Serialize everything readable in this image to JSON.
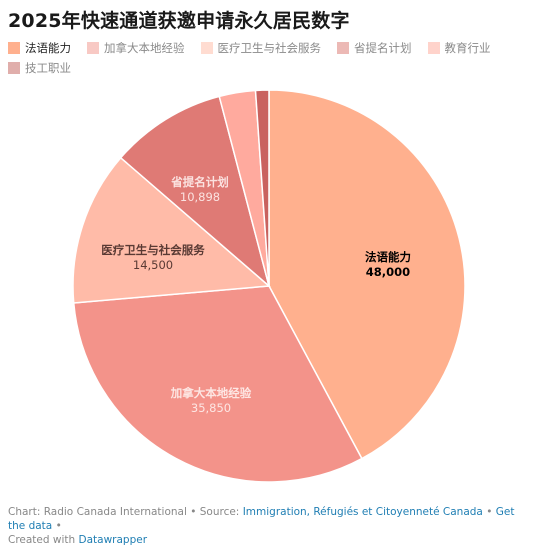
{
  "title": "2025年快速通道获邀申请永久居民数字",
  "chart_data": {
    "type": "pie",
    "title": "2025年快速通道获邀申请永久居民数字",
    "legend_placement": "top",
    "slices": [
      {
        "label": "法语能力",
        "value": 48000,
        "value_label": "48,000",
        "color": "#ffb08e",
        "label_color": "#000000",
        "show_label": true
      },
      {
        "label": "加拿大本地经验",
        "value": 35850,
        "value_label": "35,850",
        "color": "#f3938a",
        "label_color": "#fde6e3",
        "show_label": true
      },
      {
        "label": "医疗卫生与社会服务",
        "value": 14500,
        "value_label": "14,500",
        "color": "#ffbba8",
        "label_color": "#5a3a34",
        "show_label": true
      },
      {
        "label": "省提名计划",
        "value": 10898,
        "value_label": "10,898",
        "color": "#df7a75",
        "label_color": "#fbe2e0",
        "show_label": true
      },
      {
        "label": "教育行业",
        "value": 3400,
        "value_label": "",
        "color": "#ffaa9e",
        "label_color": "#000000",
        "show_label": false
      },
      {
        "label": "技工职业",
        "value": 1250,
        "value_label": "",
        "color": "#c9625f",
        "label_color": "#000000",
        "show_label": false
      }
    ]
  },
  "legend": [
    {
      "label": "法语能力",
      "color": "#ffb08e",
      "active": true
    },
    {
      "label": "加拿大本地经验",
      "color": "#f8c9c4",
      "active": false
    },
    {
      "label": "医疗卫生与社会服务",
      "color": "#ffdcd1",
      "active": false
    },
    {
      "label": "省提名计划",
      "color": "#ecb9b5",
      "active": false
    },
    {
      "label": "教育行业",
      "color": "#ffd3cb",
      "active": false
    },
    {
      "label": "技工职业",
      "color": "#e0aeab",
      "active": false
    }
  ],
  "footer": {
    "chart_prefix": "Chart: Radio Canada International • Source: ",
    "source_link": "Immigration, Réfugiés et Citoyenneté Canada",
    "sep": " • ",
    "get_data": "Get the data",
    "sep2": " •",
    "created_prefix": "Created with ",
    "created_link": "Datawrapper"
  }
}
